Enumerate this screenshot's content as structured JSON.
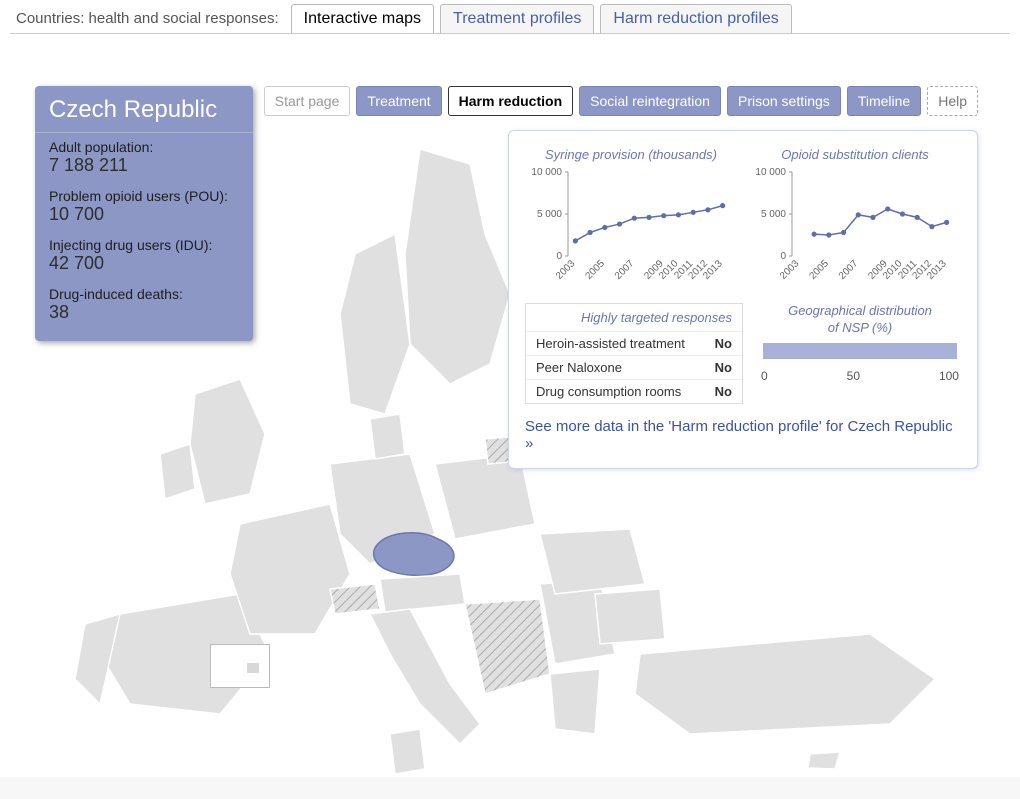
{
  "topbar": {
    "label": "Countries: health and social responses:",
    "tabs": [
      {
        "label": "Interactive maps",
        "active": true
      },
      {
        "label": "Treatment profiles",
        "active": false
      },
      {
        "label": "Harm reduction profiles",
        "active": false
      }
    ]
  },
  "country_card": {
    "title": "Czech Republic",
    "stats": [
      {
        "label": "Adult population:",
        "value": "7 188 211"
      },
      {
        "label": "Problem opioid users (POU):",
        "value": "10 700"
      },
      {
        "label": "Injecting drug users (IDU):",
        "value": "42 700"
      },
      {
        "label": "Drug-induced deaths:",
        "value": "38"
      }
    ]
  },
  "subtabs": [
    {
      "label": "Start page",
      "style": "disabled"
    },
    {
      "label": "Treatment",
      "style": "primary"
    },
    {
      "label": "Harm reduction",
      "style": "active"
    },
    {
      "label": "Social reintegration",
      "style": "primary"
    },
    {
      "label": "Prison settings",
      "style": "primary"
    },
    {
      "label": "Timeline",
      "style": "primary"
    },
    {
      "label": "Help",
      "style": "help"
    }
  ],
  "charts": {
    "syringe": {
      "title": "Syringe provision (thousands)",
      "y_ticks": [
        0,
        5000,
        10000
      ],
      "y_labels": [
        "0",
        "5 000",
        "10 000"
      ],
      "x_labels": [
        "2003",
        "2005",
        "2007",
        "2009",
        "2010",
        "2011",
        "2012",
        "2013"
      ],
      "points": [
        {
          "x": 2003,
          "y": 1800
        },
        {
          "x": 2004,
          "y": 2800
        },
        {
          "x": 2005,
          "y": 3400
        },
        {
          "x": 2006,
          "y": 3800
        },
        {
          "x": 2007,
          "y": 4500
        },
        {
          "x": 2008,
          "y": 4600
        },
        {
          "x": 2009,
          "y": 4800
        },
        {
          "x": 2010,
          "y": 4900
        },
        {
          "x": 2011,
          "y": 5200
        },
        {
          "x": 2012,
          "y": 5500
        },
        {
          "x": 2013,
          "y": 6000
        }
      ],
      "xlim": [
        2002.5,
        2013.5
      ],
      "ylim": [
        0,
        10000
      ],
      "line_color": "#5e6fa8",
      "dot_color": "#5e6fa8"
    },
    "opioid": {
      "title": "Opioid substitution clients",
      "y_ticks": [
        0,
        5000,
        10000
      ],
      "y_labels": [
        "0",
        "5 000",
        "10 000"
      ],
      "x_labels": [
        "2003",
        "2005",
        "2007",
        "2009",
        "2010",
        "2011",
        "2012",
        "2013"
      ],
      "points": [
        {
          "x": 2004,
          "y": 2600
        },
        {
          "x": 2005,
          "y": 2500
        },
        {
          "x": 2006,
          "y": 2800
        },
        {
          "x": 2007,
          "y": 4900
        },
        {
          "x": 2008,
          "y": 4600
        },
        {
          "x": 2009,
          "y": 5600
        },
        {
          "x": 2010,
          "y": 5000
        },
        {
          "x": 2011,
          "y": 4600
        },
        {
          "x": 2012,
          "y": 3500
        },
        {
          "x": 2013,
          "y": 4000
        }
      ],
      "xlim": [
        2002.5,
        2013.5
      ],
      "ylim": [
        0,
        10000
      ],
      "line_color": "#5e6fa8",
      "dot_color": "#5e6fa8"
    }
  },
  "responses": {
    "title": "Highly targeted responses",
    "rows": [
      {
        "label": "Heroin-assisted treatment",
        "value": "No"
      },
      {
        "label": "Peer Naloxone",
        "value": "No"
      },
      {
        "label": "Drug consumption rooms",
        "value": "No"
      }
    ]
  },
  "geo": {
    "title_line1": "Geographical distribution",
    "title_line2": "of NSP (%)",
    "value": 100,
    "axis": [
      "0",
      "50",
      "100"
    ],
    "bar_color": "#a9b1d8"
  },
  "more_link": "See more data in the 'Harm reduction profile' for Czech Republic »",
  "map": {
    "selected_color": "#8c97c5",
    "default_color": "#e0e0e0",
    "selected_country": "Czech Republic"
  }
}
